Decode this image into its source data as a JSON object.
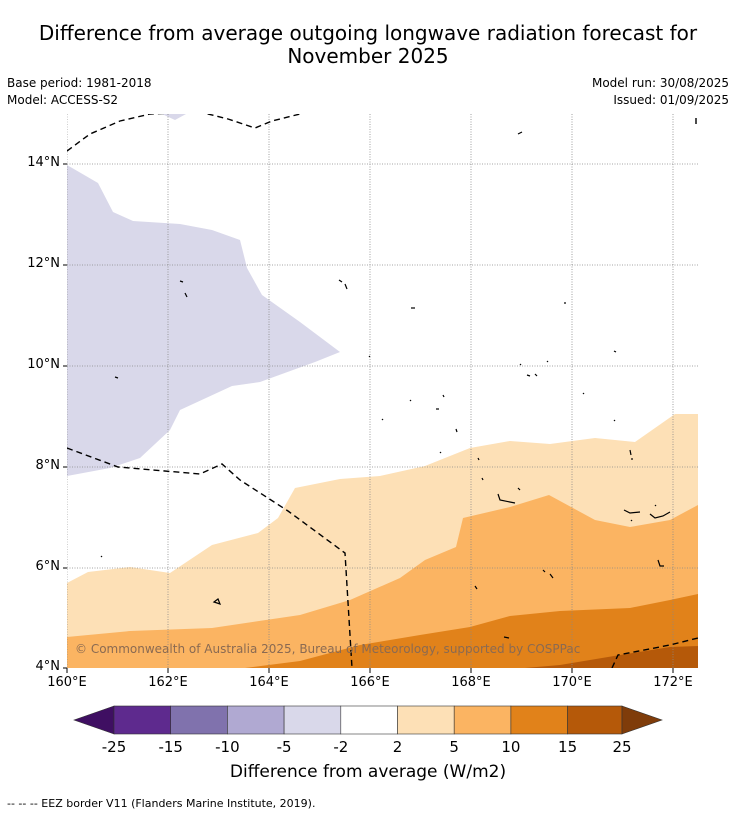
{
  "title_line1": "Difference from average outgoing longwave radiation forecast for",
  "title_line2": "November 2025",
  "base_period": "Base period: 1981-2018",
  "model": "Model: ACCESS-S2",
  "model_run": "Model run: 30/08/2025",
  "issued": "Issued: 01/09/2025",
  "map": {
    "lat_ticks": [
      "14°N",
      "12°N",
      "10°N",
      "8°N",
      "6°N",
      "4°N"
    ],
    "lon_ticks": [
      "160°E",
      "162°E",
      "164°E",
      "166°E",
      "168°E",
      "170°E",
      "172°E"
    ],
    "copyright": "© Commonwealth of Australia 2025, Bureau of Meteorology, supported by COSPPac"
  },
  "colorbar": {
    "labels": [
      "-25",
      "-15",
      "-10",
      "-5",
      "-2",
      "2",
      "5",
      "10",
      "15",
      "25"
    ],
    "colors": [
      "#3f0f62",
      "#5e2a8e",
      "#8072ad",
      "#b0a9d2",
      "#d9d8ea",
      "#ffffff",
      "#fde0b6",
      "#fbb462",
      "#e1821a",
      "#b55909",
      "#7f3c0a"
    ],
    "title": "Difference from average (W/m2)"
  },
  "footnote": "--  --  -- EEZ border V11 (Flanders Marine Institute, 2019)."
}
